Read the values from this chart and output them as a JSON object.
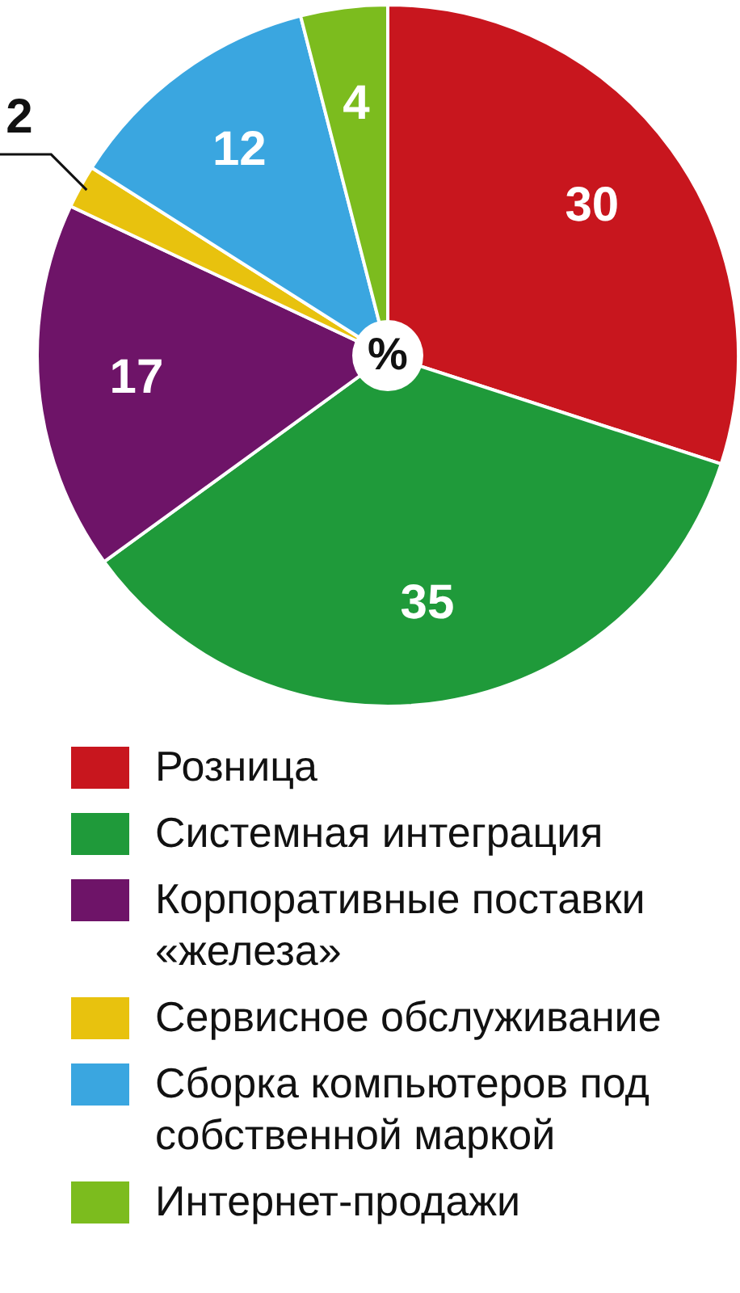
{
  "chart_data": {
    "type": "pie",
    "categories": [
      "Розница",
      "Системная интеграция",
      "Корпоративные поставки «железа»",
      "Сервисное обслуживание",
      "Сборка компьютеров под собственной маркой",
      "Интернет-продажи"
    ],
    "values": [
      30,
      35,
      17,
      2,
      12,
      4
    ],
    "colors": [
      "#c8161e",
      "#1f9a3a",
      "#6e1468",
      "#e8c20e",
      "#3aa6e0",
      "#7cbc1e"
    ],
    "data_labels": true,
    "annotations": [
      "%"
    ],
    "legend": "bottom"
  }
}
